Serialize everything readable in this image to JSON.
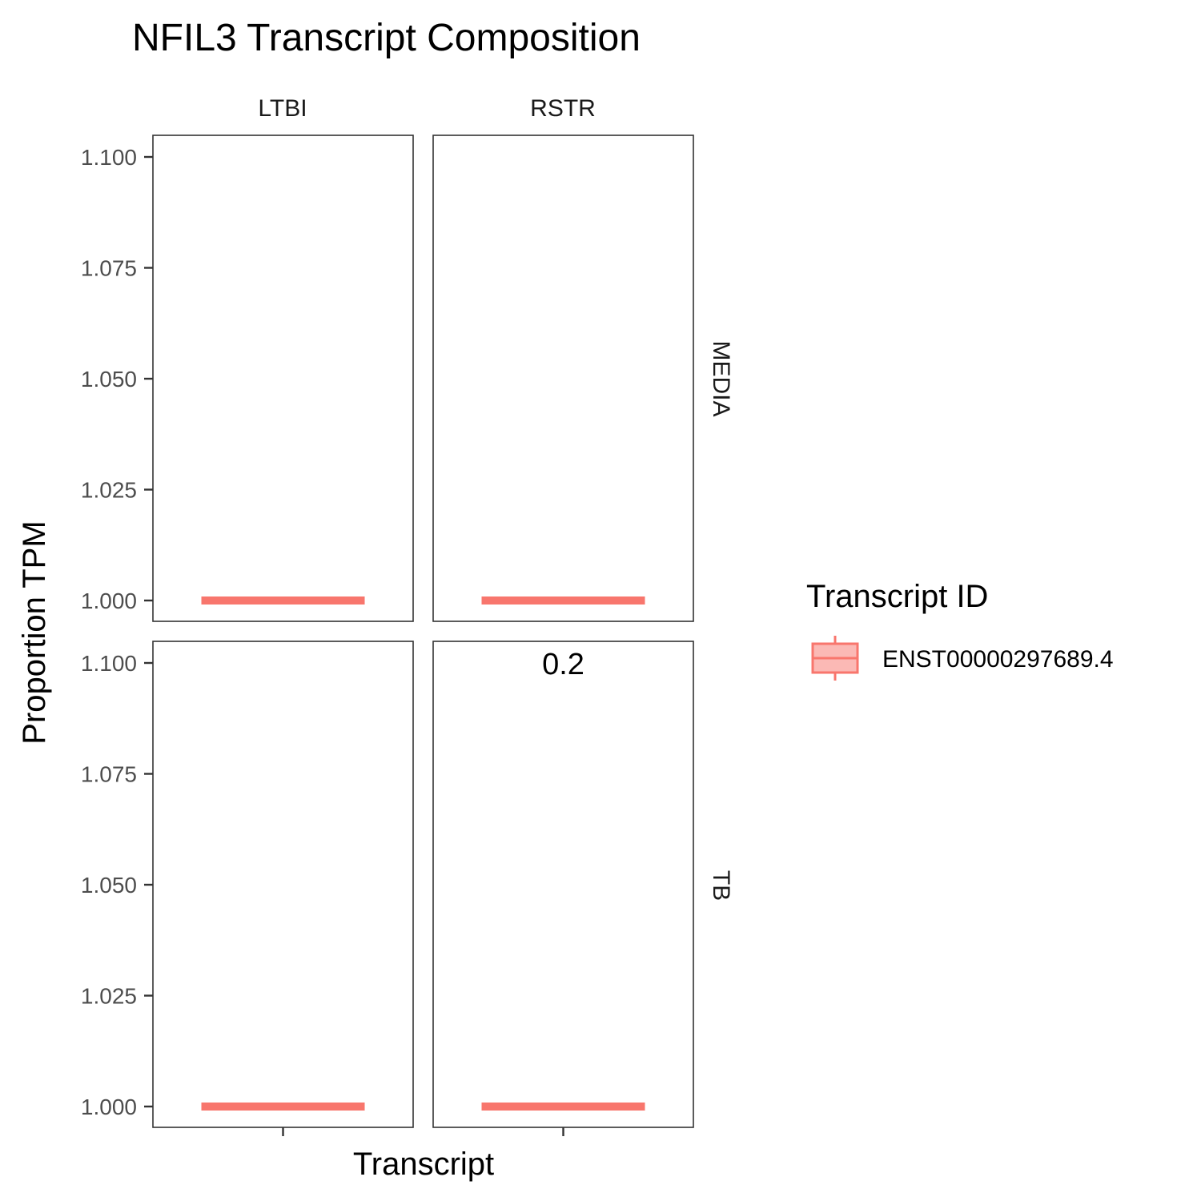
{
  "chart_data": {
    "type": "boxplot",
    "title": "NFIL3 Transcript Composition",
    "xlabel": "Transcript",
    "ylabel": "Proportion TPM",
    "ylim": [
      0.996,
      1.105
    ],
    "yticks": [
      1.0,
      1.025,
      1.05,
      1.075,
      1.1
    ],
    "ytick_labels": [
      "1.000",
      "1.025",
      "1.050",
      "1.075",
      "1.100"
    ],
    "facet_cols": [
      "LTBI",
      "RSTR"
    ],
    "facet_rows": [
      "MEDIA",
      "TB"
    ],
    "grid": false,
    "legend": {
      "title": "Transcript ID",
      "position": "right",
      "entries": [
        {
          "name": "ENST00000297689.4",
          "color": "#F8766D"
        }
      ]
    },
    "panels": [
      {
        "row": "MEDIA",
        "col": "LTBI",
        "transcript": "ENST00000297689.4",
        "median": 1.0,
        "q1": 1.0,
        "q3": 1.0,
        "annotation": ""
      },
      {
        "row": "MEDIA",
        "col": "RSTR",
        "transcript": "ENST00000297689.4",
        "median": 1.0,
        "q1": 1.0,
        "q3": 1.0,
        "annotation": ""
      },
      {
        "row": "TB",
        "col": "LTBI",
        "transcript": "ENST00000297689.4",
        "median": 1.0,
        "q1": 1.0,
        "q3": 1.0,
        "annotation": ""
      },
      {
        "row": "TB",
        "col": "RSTR",
        "transcript": "ENST00000297689.4",
        "median": 1.0,
        "q1": 1.0,
        "q3": 1.0,
        "annotation": "0.2",
        "annotation_y": 1.1
      }
    ],
    "colors": {
      "series": "#F8766D",
      "fill": "#FBB9B5",
      "panel_border": "#333333",
      "tick": "#333333"
    }
  }
}
